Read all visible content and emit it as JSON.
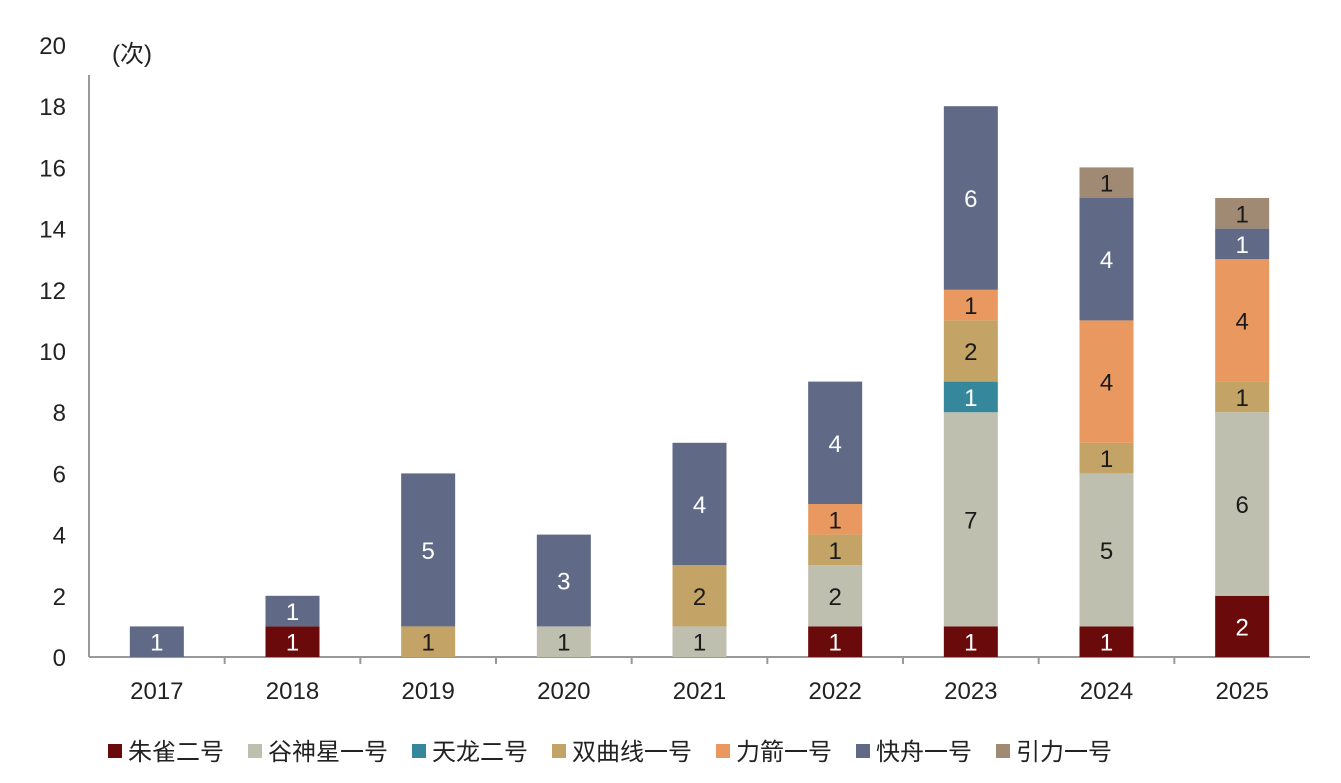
{
  "chart_data": {
    "type": "bar",
    "stacked": true,
    "title": "",
    "xlabel": "",
    "ylabel": "(次)",
    "ylim": [
      0,
      20
    ],
    "yticks": [
      0,
      2,
      4,
      6,
      8,
      10,
      12,
      14,
      16,
      18,
      20
    ],
    "grid": false,
    "legend_position": "bottom",
    "categories": [
      "2017",
      "2018",
      "2019",
      "2020",
      "2021",
      "2022",
      "2023",
      "2024",
      "2025"
    ],
    "series": [
      {
        "name": "朱雀二号",
        "color": "#6b0a0a",
        "label_color": "#ffffff",
        "values": [
          0,
          1,
          0,
          0,
          0,
          1,
          1,
          1,
          2
        ]
      },
      {
        "name": "谷神星一号",
        "color": "#bfbfb0",
        "label_color": "#1a1a1a",
        "values": [
          0,
          0,
          0,
          1,
          1,
          2,
          7,
          5,
          6
        ]
      },
      {
        "name": "天龙二号",
        "color": "#35889c",
        "label_color": "#ffffff",
        "values": [
          0,
          0,
          0,
          0,
          0,
          0,
          1,
          0,
          0
        ]
      },
      {
        "name": "双曲线一号",
        "color": "#c4a466",
        "label_color": "#1a1a1a",
        "values": [
          0,
          0,
          1,
          0,
          2,
          1,
          2,
          1,
          1
        ]
      },
      {
        "name": "力箭一号",
        "color": "#e9995f",
        "label_color": "#1a1a1a",
        "values": [
          0,
          0,
          0,
          0,
          0,
          1,
          1,
          4,
          4
        ]
      },
      {
        "name": "快舟一号",
        "color": "#606a86",
        "label_color": "#ffffff",
        "values": [
          1,
          1,
          5,
          3,
          4,
          4,
          6,
          4,
          1
        ]
      },
      {
        "name": "引力一号",
        "color": "#a08a74",
        "label_color": "#1a1a1a",
        "values": [
          0,
          0,
          0,
          0,
          0,
          0,
          0,
          1,
          1
        ]
      }
    ]
  }
}
